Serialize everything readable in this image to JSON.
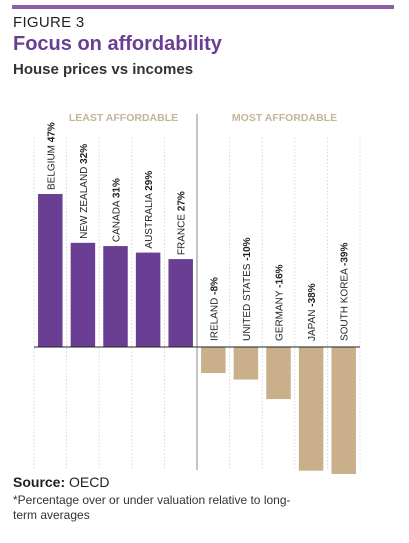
{
  "header": {
    "figure_label": "FIGURE 3",
    "title": "Focus on affordability",
    "subtitle": "House prices vs incomes"
  },
  "colors": {
    "accent": "#8b5fa8",
    "positive": "#6a3f93",
    "negative": "#c9b08b",
    "section_label": "#c4b49a"
  },
  "chart_data": {
    "type": "bar",
    "sections": [
      "LEAST AFFORDABLE",
      "MOST AFFORDABLE"
    ],
    "categories": [
      "BELGIUM",
      "NEW ZEALAND",
      "CANADA",
      "AUSTRALIA",
      "FRANCE",
      "IRELAND",
      "UNITED STATES",
      "GERMANY",
      "JAPAN",
      "SOUTH KOREA"
    ],
    "value_labels": [
      "47%",
      "32%",
      "31%",
      "29%",
      "27%",
      "-8%",
      "-10%",
      "-16%",
      "-38%",
      "-39%"
    ],
    "values": [
      47,
      32,
      31,
      29,
      27,
      -8,
      -10,
      -16,
      -38,
      -39
    ],
    "ylim": [
      -39,
      47
    ],
    "grid": true,
    "xlabel": "",
    "ylabel": ""
  },
  "footer": {
    "source_label": "Source:",
    "source_value": "OECD",
    "footnote": "*Percentage over or under valuation relative to long-term averages"
  }
}
